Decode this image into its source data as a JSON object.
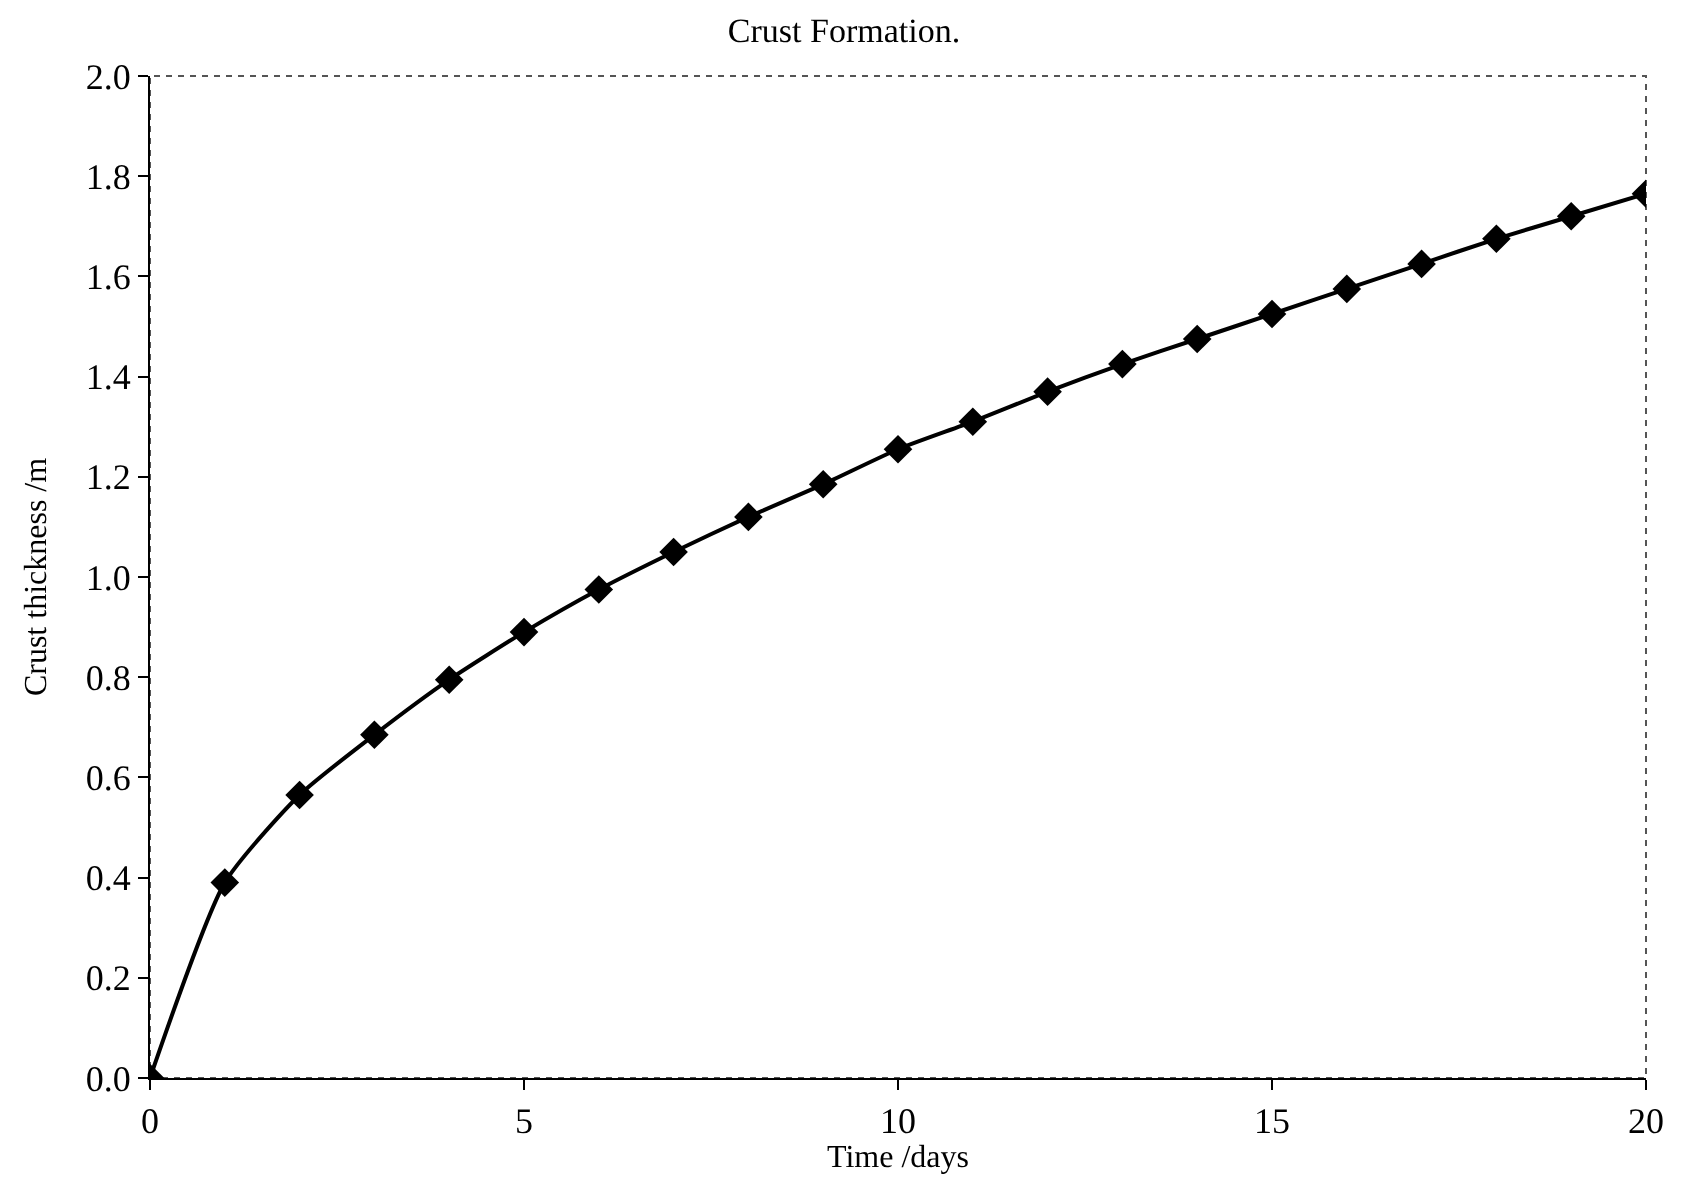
{
  "chart_data": {
    "type": "line",
    "title": "Crust Formation.",
    "xlabel": "Time /days",
    "ylabel": "Crust thickness /m",
    "x": [
      0,
      1,
      2,
      3,
      4,
      5,
      6,
      7,
      8,
      9,
      10,
      11,
      12,
      13,
      14,
      15,
      16,
      17,
      18,
      19,
      20
    ],
    "series": [
      {
        "color": "#000000",
        "values": [
          0,
          0.39,
          0.565,
          0.685,
          0.795,
          0.89,
          0.975,
          1.05,
          1.12,
          1.185,
          1.255,
          1.31,
          1.37,
          1.425,
          1.475,
          1.525,
          1.575,
          1.625,
          1.675,
          1.72,
          1.765
        ]
      }
    ],
    "xlim": [
      0,
      20
    ],
    "xticks": [
      0,
      5,
      10,
      15,
      20
    ],
    "ylim": [
      0,
      2.0
    ],
    "yticks": [
      {
        "value": 0,
        "label": "0.0"
      },
      {
        "value": 0.2,
        "label": "0.2"
      },
      {
        "value": 0.4,
        "label": "0.4"
      },
      {
        "value": 0.6,
        "label": "0.6"
      },
      {
        "value": 0.8,
        "label": "0.8"
      },
      {
        "value": 1.0,
        "label": "1.0"
      },
      {
        "value": 1.2,
        "label": "1.2"
      },
      {
        "value": 1.4,
        "label": "1.4"
      },
      {
        "value": 1.6,
        "label": "1.6"
      },
      {
        "value": 1.8,
        "label": "1.8"
      },
      {
        "value": 2.0,
        "label": "2.0"
      }
    ],
    "grid": false,
    "marker": "diamond",
    "line_style": "solid"
  }
}
